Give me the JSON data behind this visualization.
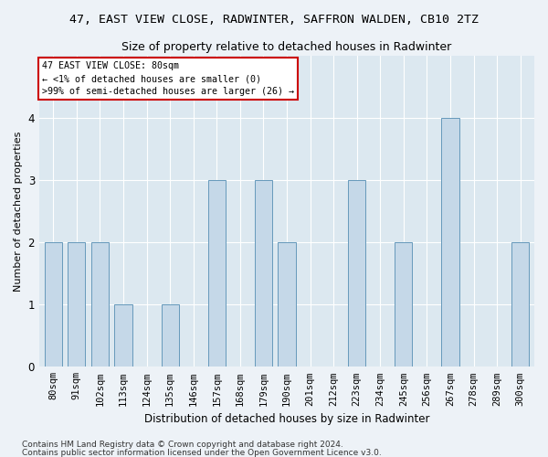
{
  "title": "47, EAST VIEW CLOSE, RADWINTER, SAFFRON WALDEN, CB10 2TZ",
  "subtitle": "Size of property relative to detached houses in Radwinter",
  "xlabel": "Distribution of detached houses by size in Radwinter",
  "ylabel": "Number of detached properties",
  "categories": [
    "80sqm",
    "91sqm",
    "102sqm",
    "113sqm",
    "124sqm",
    "135sqm",
    "146sqm",
    "157sqm",
    "168sqm",
    "179sqm",
    "190sqm",
    "201sqm",
    "212sqm",
    "223sqm",
    "234sqm",
    "245sqm",
    "256sqm",
    "267sqm",
    "278sqm",
    "289sqm",
    "300sqm"
  ],
  "values": [
    2,
    2,
    2,
    1,
    0,
    1,
    0,
    3,
    0,
    3,
    2,
    0,
    0,
    3,
    0,
    2,
    0,
    4,
    0,
    0,
    2
  ],
  "bar_color": "#c5d8e8",
  "bar_edge_color": "#6699bb",
  "annotation_title": "47 EAST VIEW CLOSE: 80sqm",
  "annotation_line1": "← <1% of detached houses are smaller (0)",
  "annotation_line2": ">99% of semi-detached houses are larger (26) →",
  "annotation_box_color": "#ffffff",
  "annotation_border_color": "#cc0000",
  "ylim": [
    0,
    5
  ],
  "yticks": [
    0,
    1,
    2,
    3,
    4,
    5
  ],
  "footer1": "Contains HM Land Registry data © Crown copyright and database right 2024.",
  "footer2": "Contains public sector information licensed under the Open Government Licence v3.0.",
  "bg_color": "#edf2f7",
  "plot_bg_color": "#dce8f0",
  "title_fontsize": 9.5,
  "subtitle_fontsize": 9,
  "ylabel_fontsize": 8,
  "xlabel_fontsize": 8.5,
  "tick_fontsize": 7.5,
  "footer_fontsize": 6.5
}
